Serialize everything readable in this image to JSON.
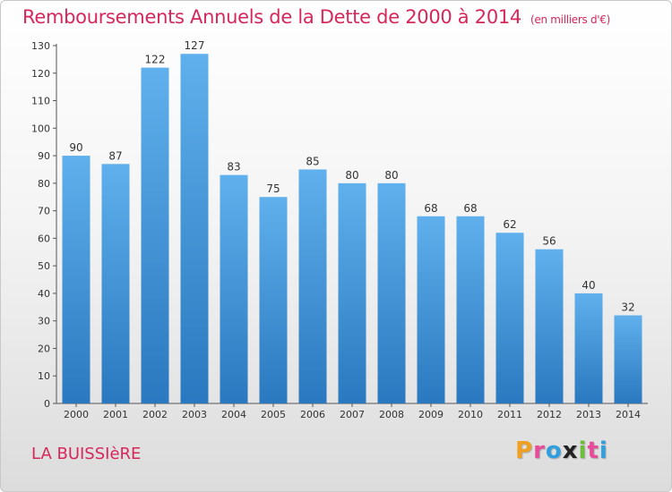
{
  "title": "Remboursements Annuels de la Dette de 2000 à 2014",
  "subtitle": "(en milliers d'€)",
  "place_name": "LA BUISSIèRE",
  "logo": {
    "letters": [
      "P",
      "r",
      "o",
      "x",
      "i",
      "t",
      "i"
    ],
    "colors": [
      "#f0a020",
      "#e84b9a",
      "#2f9fe0",
      "#222222",
      "#6bbf3a",
      "#e84b9a",
      "#2f9fe0"
    ]
  },
  "colors": {
    "bar_top": "#5fb0ec",
    "bar_bottom": "#2a78bf",
    "title": "#d6275b"
  },
  "chart_data": {
    "type": "bar",
    "categories": [
      "2000",
      "2001",
      "2002",
      "2003",
      "2004",
      "2005",
      "2006",
      "2007",
      "2008",
      "2009",
      "2010",
      "2011",
      "2012",
      "2013",
      "2014"
    ],
    "values": [
      90,
      87,
      122,
      127,
      83,
      75,
      85,
      80,
      80,
      68,
      68,
      62,
      56,
      40,
      32
    ],
    "ylim": [
      0,
      130
    ],
    "yticks": [
      0,
      10,
      20,
      30,
      40,
      50,
      60,
      70,
      80,
      90,
      100,
      110,
      120,
      130
    ],
    "xlabel": "",
    "ylabel": "",
    "grid": false
  }
}
